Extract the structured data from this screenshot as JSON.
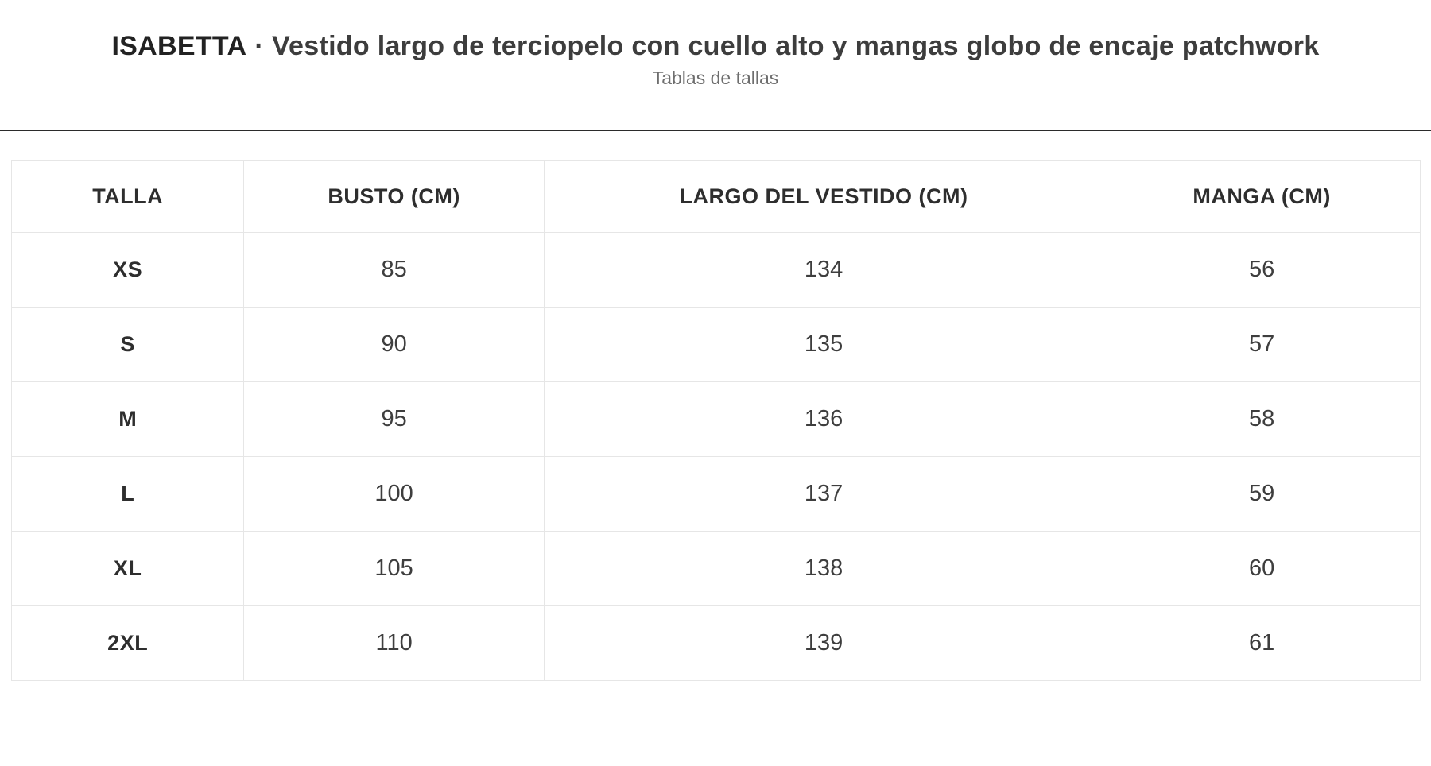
{
  "header": {
    "brand": "ISABETTA",
    "separator": "·",
    "product_title": "Vestido largo de terciopelo con cuello alto y mangas globo de encaje patchwork",
    "subtitle": "Tablas de tallas"
  },
  "size_table": {
    "columns": [
      "TALLA",
      "BUSTO (CM)",
      "LARGO DEL VESTIDO (CM)",
      "MANGA (CM)"
    ],
    "column_keys": [
      "talla",
      "busto",
      "largo-del-vestido",
      "manga"
    ],
    "rows": [
      [
        "XS",
        "85",
        "134",
        "56"
      ],
      [
        "S",
        "90",
        "135",
        "57"
      ],
      [
        "M",
        "95",
        "136",
        "58"
      ],
      [
        "L",
        "100",
        "137",
        "59"
      ],
      [
        "XL",
        "105",
        "138",
        "60"
      ],
      [
        "2XL",
        "110",
        "139",
        "61"
      ]
    ]
  },
  "colors": {
    "title_text": "#3d3d3d",
    "brand_text": "#222222",
    "subtitle_text": "#6e6e6e",
    "divider": "#2b2b2b",
    "table_border": "#e6e6e6",
    "header_text": "#2e2e2e",
    "value_text": "#3e3e3e"
  }
}
